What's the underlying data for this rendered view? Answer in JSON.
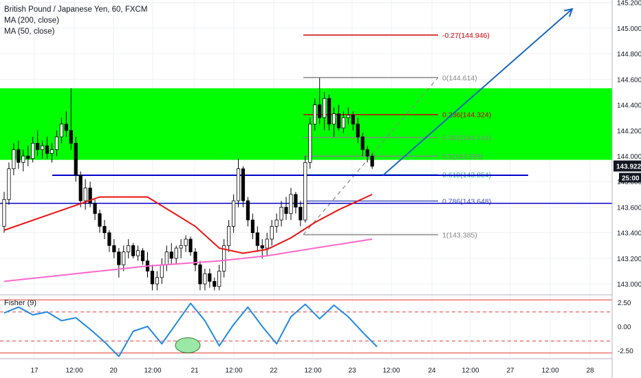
{
  "header": {
    "symbol_line": "British Pound / Japanese Yen, 60, FXCM",
    "ma_long": "MA (200, close)",
    "ma_short": "MA (50, close)"
  },
  "colors": {
    "up_candle": "#ffffff",
    "down_candle": "#000000",
    "zone": "#00ff00",
    "ma200": "#ff66cc",
    "ma50": "#ee1111",
    "hline": "#0000cc",
    "trend": "#1565c0",
    "fisher": "#1e88e5",
    "fib_grey": "#888888",
    "fib_red": "#cc0000",
    "price_tag": "#131722"
  },
  "price_scale": {
    "ticks": [
      "145.200",
      "145.000",
      "144.800",
      "144.600",
      "144.400",
      "144.200",
      "144.000",
      "143.800",
      "143.600",
      "143.400",
      "143.200",
      "143.000"
    ],
    "current_price": "143.922",
    "countdown": "25:00"
  },
  "time_scale": {
    "labels": [
      "17",
      "12:00",
      "20",
      "12:00",
      "21",
      "12:00",
      "22",
      "12:00",
      "23",
      "12:00",
      "24",
      "12:00",
      "27",
      "12:00",
      "28"
    ]
  },
  "fib_levels": [
    {
      "label": "-0.27(144.946)",
      "ratio": -0.27,
      "price": 144.946
    },
    {
      "label": "0(144.614)",
      "ratio": 0,
      "price": 144.614
    },
    {
      "label": "0.236(144.324)",
      "ratio": 0.236,
      "price": 144.324
    },
    {
      "label": "0.382(144.144)",
      "ratio": 0.382,
      "price": 144.144
    },
    {
      "label": "0.5(143.999)",
      "ratio": 0.5,
      "price": 143.999
    },
    {
      "label": "0.618(143.854)",
      "ratio": 0.618,
      "price": 143.854
    },
    {
      "label": "0.786(143.648)",
      "ratio": 0.786,
      "price": 143.648
    },
    {
      "label": "1(143.385)",
      "ratio": 1,
      "price": 143.385
    }
  ],
  "fisher_panel": {
    "title": "Fisher (9)",
    "ticks": [
      "2.50",
      "0.00",
      "-2.50"
    ],
    "levels": [
      2.75,
      1.5,
      -1.5,
      -2.75
    ]
  },
  "chart_data": {
    "type": "candlestick",
    "title": "British Pound / Japanese Yen, 60, FXCM",
    "xlabel": "",
    "ylabel": "",
    "ylim": [
      142.92,
      145.22
    ],
    "grid": true,
    "legend_position": "top-left",
    "timeframe": "60",
    "candles": [
      {
        "t": 0,
        "o": 143.45,
        "h": 143.72,
        "l": 143.4,
        "c": 143.66
      },
      {
        "t": 1,
        "o": 143.66,
        "h": 143.95,
        "l": 143.62,
        "c": 143.9
      },
      {
        "t": 2,
        "o": 143.9,
        "h": 144.1,
        "l": 143.85,
        "c": 144.05
      },
      {
        "t": 3,
        "o": 144.05,
        "h": 144.12,
        "l": 143.9,
        "c": 143.95
      },
      {
        "t": 4,
        "o": 143.95,
        "h": 144.05,
        "l": 143.88,
        "c": 144.0
      },
      {
        "t": 5,
        "o": 144.0,
        "h": 144.08,
        "l": 143.92,
        "c": 143.98
      },
      {
        "t": 6,
        "o": 143.98,
        "h": 144.15,
        "l": 143.95,
        "c": 144.1
      },
      {
        "t": 7,
        "o": 144.1,
        "h": 144.2,
        "l": 144.0,
        "c": 144.05
      },
      {
        "t": 8,
        "o": 144.05,
        "h": 144.12,
        "l": 143.98,
        "c": 144.08
      },
      {
        "t": 9,
        "o": 144.08,
        "h": 144.15,
        "l": 143.98,
        "c": 144.02
      },
      {
        "t": 10,
        "o": 144.02,
        "h": 144.1,
        "l": 143.95,
        "c": 144.05
      },
      {
        "t": 11,
        "o": 144.05,
        "h": 144.2,
        "l": 144.0,
        "c": 144.15
      },
      {
        "t": 12,
        "o": 144.15,
        "h": 144.3,
        "l": 144.1,
        "c": 144.25
      },
      {
        "t": 13,
        "o": 144.25,
        "h": 144.35,
        "l": 144.15,
        "c": 144.2
      },
      {
        "t": 14,
        "o": 144.2,
        "h": 144.53,
        "l": 144.05,
        "c": 144.1
      },
      {
        "t": 15,
        "o": 144.1,
        "h": 144.15,
        "l": 143.8,
        "c": 143.85
      },
      {
        "t": 16,
        "o": 143.85,
        "h": 143.88,
        "l": 143.6,
        "c": 143.65
      },
      {
        "t": 17,
        "o": 143.65,
        "h": 143.82,
        "l": 143.58,
        "c": 143.75
      },
      {
        "t": 18,
        "o": 143.75,
        "h": 143.8,
        "l": 143.6,
        "c": 143.63
      },
      {
        "t": 19,
        "o": 143.63,
        "h": 143.66,
        "l": 143.5,
        "c": 143.55
      },
      {
        "t": 20,
        "o": 143.55,
        "h": 143.58,
        "l": 143.4,
        "c": 143.45
      },
      {
        "t": 21,
        "o": 143.45,
        "h": 143.5,
        "l": 143.35,
        "c": 143.4
      },
      {
        "t": 22,
        "o": 143.4,
        "h": 143.42,
        "l": 143.25,
        "c": 143.3
      },
      {
        "t": 23,
        "o": 143.3,
        "h": 143.35,
        "l": 143.2,
        "c": 143.25
      },
      {
        "t": 24,
        "o": 143.25,
        "h": 143.28,
        "l": 143.05,
        "c": 143.15
      },
      {
        "t": 25,
        "o": 143.15,
        "h": 143.3,
        "l": 143.1,
        "c": 143.25
      },
      {
        "t": 26,
        "o": 143.25,
        "h": 143.35,
        "l": 143.2,
        "c": 143.3
      },
      {
        "t": 27,
        "o": 143.3,
        "h": 143.32,
        "l": 143.2,
        "c": 143.22
      },
      {
        "t": 28,
        "o": 143.22,
        "h": 143.3,
        "l": 143.18,
        "c": 143.26
      },
      {
        "t": 29,
        "o": 143.26,
        "h": 143.28,
        "l": 143.15,
        "c": 143.18
      },
      {
        "t": 30,
        "o": 143.18,
        "h": 143.25,
        "l": 143.05,
        "c": 143.1
      },
      {
        "t": 31,
        "o": 143.1,
        "h": 143.15,
        "l": 142.95,
        "c": 143.0
      },
      {
        "t": 32,
        "o": 143.0,
        "h": 143.1,
        "l": 142.95,
        "c": 143.05
      },
      {
        "t": 33,
        "o": 143.05,
        "h": 143.2,
        "l": 143.0,
        "c": 143.15
      },
      {
        "t": 34,
        "o": 143.15,
        "h": 143.3,
        "l": 143.1,
        "c": 143.25
      },
      {
        "t": 35,
        "o": 143.25,
        "h": 143.32,
        "l": 143.15,
        "c": 143.2
      },
      {
        "t": 36,
        "o": 143.2,
        "h": 143.3,
        "l": 143.15,
        "c": 143.28
      },
      {
        "t": 37,
        "o": 143.28,
        "h": 143.35,
        "l": 143.2,
        "c": 143.3
      },
      {
        "t": 38,
        "o": 143.3,
        "h": 143.38,
        "l": 143.25,
        "c": 143.35
      },
      {
        "t": 39,
        "o": 143.35,
        "h": 143.37,
        "l": 143.22,
        "c": 143.25
      },
      {
        "t": 40,
        "o": 143.25,
        "h": 143.28,
        "l": 143.1,
        "c": 143.15
      },
      {
        "t": 41,
        "o": 143.15,
        "h": 143.18,
        "l": 142.95,
        "c": 143.0
      },
      {
        "t": 42,
        "o": 143.0,
        "h": 143.12,
        "l": 142.95,
        "c": 143.08
      },
      {
        "t": 43,
        "o": 143.08,
        "h": 143.12,
        "l": 142.97,
        "c": 143.02
      },
      {
        "t": 44,
        "o": 143.02,
        "h": 143.05,
        "l": 142.95,
        "c": 142.98
      },
      {
        "t": 45,
        "o": 142.98,
        "h": 143.15,
        "l": 142.95,
        "c": 143.1
      },
      {
        "t": 46,
        "o": 143.1,
        "h": 143.35,
        "l": 143.05,
        "c": 143.3
      },
      {
        "t": 47,
        "o": 143.3,
        "h": 143.5,
        "l": 143.25,
        "c": 143.45
      },
      {
        "t": 48,
        "o": 143.45,
        "h": 143.7,
        "l": 143.4,
        "c": 143.65
      },
      {
        "t": 49,
        "o": 143.65,
        "h": 143.98,
        "l": 143.6,
        "c": 143.9
      },
      {
        "t": 50,
        "o": 143.9,
        "h": 143.92,
        "l": 143.6,
        "c": 143.65
      },
      {
        "t": 51,
        "o": 143.65,
        "h": 143.68,
        "l": 143.45,
        "c": 143.5
      },
      {
        "t": 52,
        "o": 143.5,
        "h": 143.55,
        "l": 143.35,
        "c": 143.4
      },
      {
        "t": 53,
        "o": 143.4,
        "h": 143.45,
        "l": 143.25,
        "c": 143.3
      },
      {
        "t": 54,
        "o": 143.3,
        "h": 143.35,
        "l": 143.2,
        "c": 143.28
      },
      {
        "t": 55,
        "o": 143.28,
        "h": 143.4,
        "l": 143.22,
        "c": 143.35
      },
      {
        "t": 56,
        "o": 143.35,
        "h": 143.5,
        "l": 143.3,
        "c": 143.45
      },
      {
        "t": 57,
        "o": 143.45,
        "h": 143.55,
        "l": 143.4,
        "c": 143.5
      },
      {
        "t": 58,
        "o": 143.5,
        "h": 143.65,
        "l": 143.45,
        "c": 143.6
      },
      {
        "t": 59,
        "o": 143.6,
        "h": 143.68,
        "l": 143.5,
        "c": 143.55
      },
      {
        "t": 60,
        "o": 143.55,
        "h": 143.75,
        "l": 143.5,
        "c": 143.7
      },
      {
        "t": 61,
        "o": 143.7,
        "h": 143.72,
        "l": 143.55,
        "c": 143.6
      },
      {
        "t": 62,
        "o": 143.6,
        "h": 143.65,
        "l": 143.45,
        "c": 143.5
      },
      {
        "t": 63,
        "o": 143.5,
        "h": 144.0,
        "l": 143.48,
        "c": 143.95
      },
      {
        "t": 64,
        "o": 143.95,
        "h": 144.3,
        "l": 143.9,
        "c": 144.25
      },
      {
        "t": 65,
        "o": 144.25,
        "h": 144.45,
        "l": 144.2,
        "c": 144.4
      },
      {
        "t": 66,
        "o": 144.4,
        "h": 144.61,
        "l": 144.25,
        "c": 144.3
      },
      {
        "t": 67,
        "o": 144.3,
        "h": 144.5,
        "l": 144.2,
        "c": 144.45
      },
      {
        "t": 68,
        "o": 144.45,
        "h": 144.48,
        "l": 144.2,
        "c": 144.25
      },
      {
        "t": 69,
        "o": 144.25,
        "h": 144.38,
        "l": 144.15,
        "c": 144.33
      },
      {
        "t": 70,
        "o": 144.33,
        "h": 144.4,
        "l": 144.2,
        "c": 144.22
      },
      {
        "t": 71,
        "o": 144.22,
        "h": 144.35,
        "l": 144.18,
        "c": 144.3
      },
      {
        "t": 72,
        "o": 144.3,
        "h": 144.38,
        "l": 144.25,
        "c": 144.32
      },
      {
        "t": 73,
        "o": 144.32,
        "h": 144.35,
        "l": 144.2,
        "c": 144.25
      },
      {
        "t": 74,
        "o": 144.25,
        "h": 144.3,
        "l": 144.1,
        "c": 144.15
      },
      {
        "t": 75,
        "o": 144.15,
        "h": 144.18,
        "l": 144.0,
        "c": 144.05
      },
      {
        "t": 76,
        "o": 144.05,
        "h": 144.08,
        "l": 143.95,
        "c": 144.0
      },
      {
        "t": 77,
        "o": 144.0,
        "h": 144.02,
        "l": 143.9,
        "c": 143.92
      }
    ],
    "series": [
      {
        "name": "MA (200, close)",
        "x": [
          0,
          15,
          30,
          45,
          55,
          65,
          77
        ],
        "values": [
          143.02,
          143.08,
          143.14,
          143.18,
          143.22,
          143.28,
          143.35
        ]
      },
      {
        "name": "MA (50, close)",
        "x": [
          0,
          10,
          20,
          30,
          40,
          45,
          50,
          55,
          60,
          65,
          70,
          77
        ],
        "values": [
          143.42,
          143.55,
          143.68,
          143.68,
          143.45,
          143.28,
          143.24,
          143.27,
          143.36,
          143.48,
          143.58,
          143.7
        ]
      }
    ],
    "horizontal_lines": [
      143.85,
      143.63
    ],
    "zone": {
      "from": 143.97,
      "to": 144.53
    },
    "trendline": {
      "from": {
        "t": 78,
        "p": 143.85
      },
      "to": {
        "t": 110,
        "p": 145.15
      }
    },
    "fisher": {
      "ylim": [
        -3.2,
        3.2
      ],
      "x": [
        0,
        3,
        6,
        9,
        12,
        15,
        18,
        21,
        24,
        27,
        30,
        33,
        36,
        39,
        42,
        45,
        48,
        51,
        54,
        57,
        60,
        63,
        66,
        69,
        72,
        75,
        78
      ],
      "values": [
        1.4,
        2.0,
        1.2,
        1.5,
        0.6,
        0.9,
        -0.3,
        -1.6,
        -3.1,
        -0.5,
        0.0,
        -1.8,
        0.3,
        2.4,
        0.6,
        -2.0,
        0.2,
        2.0,
        0.0,
        -1.8,
        1.0,
        2.3,
        0.8,
        2.2,
        1.0,
        -0.6,
        -2.1
      ]
    }
  }
}
